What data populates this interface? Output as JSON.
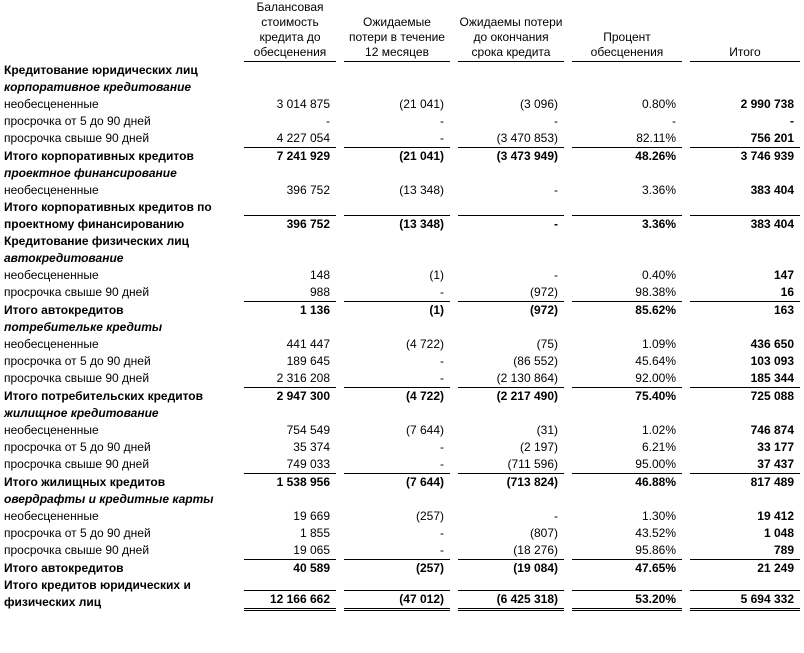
{
  "headers": [
    "Балансовая стоимость кредита до обесценения",
    "Ожидаемые потери в течение 12 месяцев",
    "Ожидаемы потери до окончания срока кредита",
    "Процент обесценения",
    "Итого"
  ],
  "sections": [
    {
      "title": "Кредитование юридических лиц",
      "groups": [
        {
          "title": "корпоративное кредитование",
          "rows": [
            {
              "label": "необесцененные",
              "cells": [
                "3 014 875",
                "(21 041)",
                "(3 096)",
                "0.80%",
                "2 990 738"
              ]
            },
            {
              "label": "просрочка от 5 до 90 дней",
              "cells": [
                "-",
                "-",
                "-",
                "-",
                "-"
              ]
            },
            {
              "label": "просрочка свыше 90 дней",
              "cells": [
                "4 227 054",
                "-",
                "(3 470 853)",
                "82.11%",
                "756 201"
              ]
            }
          ],
          "total": {
            "label": "Итого корпоративных кредитов",
            "cells": [
              "7 241 929",
              "(21 041)",
              "(3 473 949)",
              "48.26%",
              "3 746 939"
            ]
          }
        },
        {
          "title": "проектное финансирование",
          "rows": [
            {
              "label": "необесцененные",
              "cells": [
                "396 752",
                "(13 348)",
                "-",
                "3.36%",
                "383 404"
              ]
            }
          ],
          "total": {
            "label": "Итого корпоративных кредитов по проектному финансированию",
            "cells": [
              "396 752",
              "(13 348)",
              "-",
              "3.36%",
              "383 404"
            ]
          }
        }
      ]
    },
    {
      "title": "Кредитование физических лиц",
      "groups": [
        {
          "title": "автокредитование",
          "rows": [
            {
              "label": "необесцененные",
              "cells": [
                "148",
                "(1)",
                "-",
                "0.40%",
                "147"
              ]
            },
            {
              "label": "просрочка свыше 90 дней",
              "cells": [
                "988",
                "-",
                "(972)",
                "98.38%",
                "16"
              ]
            }
          ],
          "total": {
            "label": "Итого автокредитов",
            "cells": [
              "1 136",
              "(1)",
              "(972)",
              "85.62%",
              "163"
            ]
          }
        },
        {
          "title": "потребительке кредиты",
          "rows": [
            {
              "label": "необесцененные",
              "cells": [
                "441 447",
                "(4 722)",
                "(75)",
                "1.09%",
                "436 650"
              ]
            },
            {
              "label": "просрочка от 5 до 90 дней",
              "cells": [
                "189 645",
                "-",
                "(86 552)",
                "45.64%",
                "103 093"
              ]
            },
            {
              "label": "просрочка свыше 90 дней",
              "cells": [
                "2 316 208",
                "-",
                "(2 130 864)",
                "92.00%",
                "185 344"
              ]
            }
          ],
          "total": {
            "label": "Итого потребительских кредитов",
            "cells": [
              "2 947 300",
              "(4 722)",
              "(2 217 490)",
              "75.40%",
              "725 088"
            ]
          }
        },
        {
          "title": "жилищное кредитование",
          "rows": [
            {
              "label": "необесцененные",
              "cells": [
                "754 549",
                "(7 644)",
                "(31)",
                "1.02%",
                "746 874"
              ]
            },
            {
              "label": "просрочка от 5 до 90 дней",
              "cells": [
                "35 374",
                "-",
                "(2 197)",
                "6.21%",
                "33 177"
              ]
            },
            {
              "label": "просрочка свыше 90 дней",
              "cells": [
                "749 033",
                "-",
                "(711 596)",
                "95.00%",
                "37 437"
              ]
            }
          ],
          "total": {
            "label": "Итого жилищных кредитов",
            "cells": [
              "1 538 956",
              "(7 644)",
              "(713 824)",
              "46.88%",
              "817 489"
            ]
          }
        },
        {
          "title": "овердрафты и кредитные карты",
          "rows": [
            {
              "label": "необесцененные",
              "cells": [
                "19 669",
                "(257)",
                "-",
                "1.30%",
                "19 412"
              ]
            },
            {
              "label": "просрочка от 5 до 90 дней",
              "cells": [
                "1 855",
                "-",
                "(807)",
                "43.52%",
                "1 048"
              ]
            },
            {
              "label": "просрочка свыше 90 дней",
              "cells": [
                "19 065",
                "-",
                "(18 276)",
                "95.86%",
                "789"
              ]
            }
          ],
          "total": {
            "label": "Итого автокредитов",
            "cells": [
              "40 589",
              "(257)",
              "(19 084)",
              "47.65%",
              "21 249"
            ]
          }
        }
      ]
    }
  ],
  "grand_total": {
    "label": "Итого кредитов юридических и физических лиц",
    "cells": [
      "12 166 662",
      "(47 012)",
      "(6 425 318)",
      "53.20%",
      "5 694 332"
    ]
  }
}
